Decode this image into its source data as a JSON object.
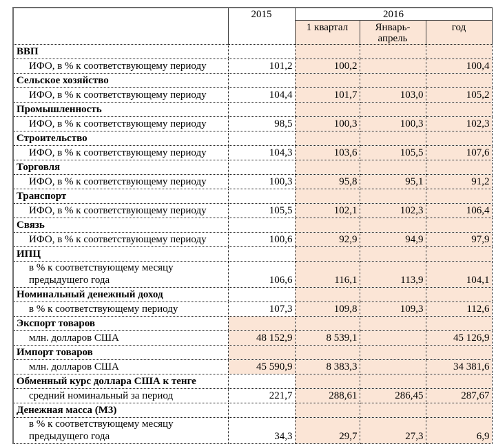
{
  "colors": {
    "highlight": "#fbe5d6",
    "outer_border": "#6e6e6e",
    "inner_border": "#1a1a1a"
  },
  "table": {
    "header": {
      "year_2015": "2015",
      "year_2016": "2016",
      "subcolumns": [
        "1 квартал",
        "Январь-\nапрель",
        "год"
      ]
    },
    "rows": [
      {
        "kind": "category",
        "label": "ВВП",
        "peach2015": false,
        "values": [
          "",
          "",
          "",
          ""
        ]
      },
      {
        "kind": "sub",
        "label": "ИФО, в % к соответствующему периоду",
        "peach2015": false,
        "values": [
          "101,2",
          "100,2",
          "",
          "100,4"
        ]
      },
      {
        "kind": "category",
        "label": "Сельское хозяйство",
        "peach2015": false,
        "values": [
          "",
          "",
          "",
          ""
        ]
      },
      {
        "kind": "sub",
        "label": "ИФО, в % к соответствующему периоду",
        "peach2015": false,
        "values": [
          "104,4",
          "101,7",
          "103,0",
          "105,2"
        ]
      },
      {
        "kind": "category",
        "label": "Промышленность",
        "peach2015": false,
        "values": [
          "",
          "",
          "",
          ""
        ]
      },
      {
        "kind": "sub",
        "label": "ИФО, в % к соответствующему периоду",
        "peach2015": false,
        "values": [
          "98,5",
          "100,3",
          "100,3",
          "102,3"
        ]
      },
      {
        "kind": "category",
        "label": "Строительство",
        "peach2015": false,
        "values": [
          "",
          "",
          "",
          ""
        ]
      },
      {
        "kind": "sub",
        "label": "ИФО, в % к соответствующему периоду",
        "peach2015": false,
        "values": [
          "104,3",
          "103,6",
          "105,5",
          "107,6"
        ]
      },
      {
        "kind": "category",
        "label": "Торговля",
        "peach2015": false,
        "values": [
          "",
          "",
          "",
          ""
        ]
      },
      {
        "kind": "sub",
        "label": "ИФО, в % к соответствующему периоду",
        "peach2015": false,
        "values": [
          "100,3",
          "95,8",
          "95,1",
          "91,2"
        ]
      },
      {
        "kind": "category",
        "label": "Транспорт",
        "peach2015": false,
        "values": [
          "",
          "",
          "",
          ""
        ]
      },
      {
        "kind": "sub",
        "label": "ИФО, в % к соответствующему периоду",
        "peach2015": false,
        "values": [
          "105,5",
          "102,1",
          "102,3",
          "106,4"
        ]
      },
      {
        "kind": "category",
        "label": "Связь",
        "peach2015": false,
        "values": [
          "",
          "",
          "",
          ""
        ]
      },
      {
        "kind": "sub",
        "label": "ИФО, в % к соответствующему периоду",
        "peach2015": false,
        "values": [
          "100,6",
          "92,9",
          "94,9",
          "97,9"
        ]
      },
      {
        "kind": "category",
        "label": "ИПЦ",
        "peach2015": false,
        "values": [
          "",
          "",
          "",
          ""
        ]
      },
      {
        "kind": "sub",
        "label": "в % к соответствующему месяцу\nпредыдущего года",
        "peach2015": false,
        "values": [
          "106,6",
          "116,1",
          "113,9",
          "104,1"
        ]
      },
      {
        "kind": "category",
        "label": "Номинальный денежный доход",
        "peach2015": false,
        "values": [
          "",
          "",
          "",
          ""
        ]
      },
      {
        "kind": "sub",
        "label": "в % к соответствующему периоду",
        "peach2015": false,
        "values": [
          "107,3",
          "109,8",
          "109,3",
          "112,6"
        ]
      },
      {
        "kind": "category",
        "label": "Экспорт товаров",
        "peach2015": true,
        "values": [
          "",
          "",
          "",
          ""
        ]
      },
      {
        "kind": "sub",
        "label": "млн. долларов США",
        "peach2015": true,
        "values": [
          "48 152,9",
          "8 539,1",
          "",
          "45 126,9"
        ]
      },
      {
        "kind": "category",
        "label": "Импорт товаров",
        "peach2015": true,
        "values": [
          "",
          "",
          "",
          ""
        ]
      },
      {
        "kind": "sub",
        "label": "млн. долларов США",
        "peach2015": true,
        "values": [
          "45 590,9",
          "8 383,3",
          "",
          "34 381,6"
        ]
      },
      {
        "kind": "category",
        "label": "Обменный курс доллара США к тенге",
        "peach2015": false,
        "values": [
          "",
          "",
          "",
          ""
        ]
      },
      {
        "kind": "sub",
        "label": "средний номинальный за период",
        "peach2015": false,
        "values": [
          "221,7",
          "288,61",
          "286,45",
          "287,67"
        ]
      },
      {
        "kind": "category",
        "label": "Денежная масса (М3)",
        "peach2015": false,
        "values": [
          "",
          "",
          "",
          ""
        ]
      },
      {
        "kind": "sub",
        "label": "в % к соответствующему месяцу\nпредыдущего года",
        "peach2015": false,
        "values": [
          "34,3",
          "29,7",
          "27,3",
          "6,9"
        ]
      }
    ]
  }
}
